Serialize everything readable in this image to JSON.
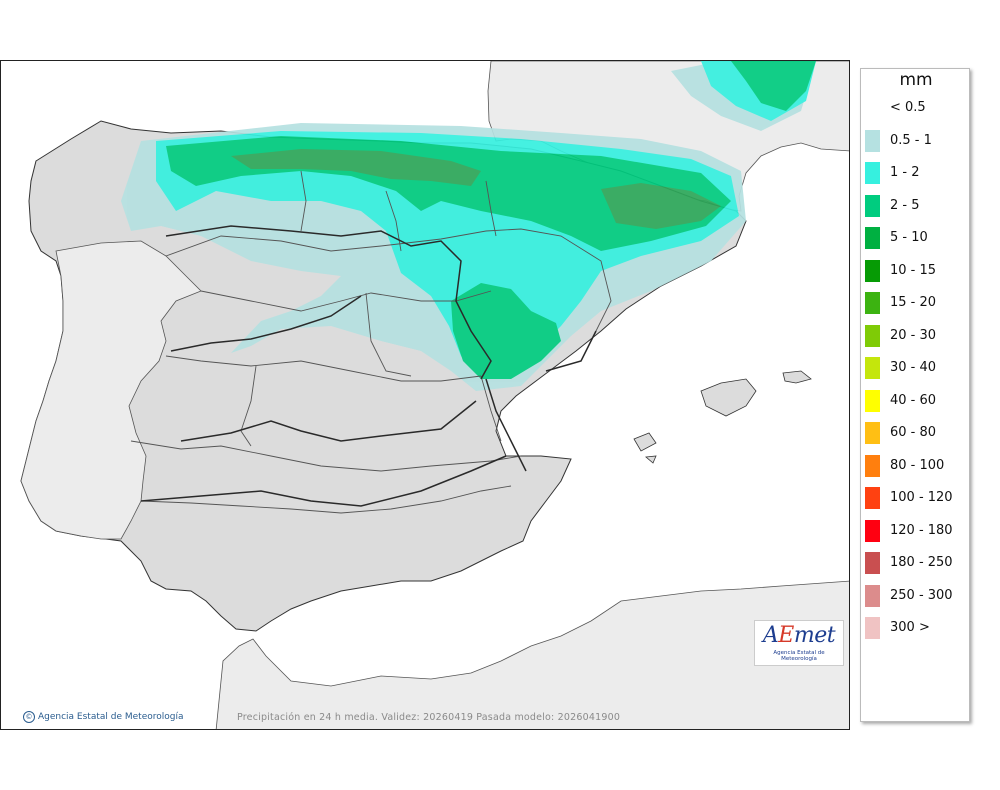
{
  "map": {
    "credit": "Agencia Estatal de Meteorología",
    "validity": "Precipitación en 24 h media. Validez: 20260419 Pasada modelo: 2026041900",
    "logo": {
      "brand_a": "A",
      "brand_e": "E",
      "brand_rest": "met",
      "subtitle": "Agencia Estatal de Meteorología"
    },
    "colors": {
      "sea": "#ffffff",
      "land": "#dcdcdc",
      "foreign_land": "#ececec",
      "border": "#333333"
    }
  },
  "legend": {
    "unit": "mm",
    "items": [
      {
        "label": "< 0.5",
        "color": "#ffffff"
      },
      {
        "label": "0.5 - 1",
        "color": "#b5e1e1"
      },
      {
        "label": "1 - 2",
        "color": "#36f0df"
      },
      {
        "label": "2 - 5",
        "color": "#00cc7f"
      },
      {
        "label": "5 - 10",
        "color": "#00b041"
      },
      {
        "label": "10 - 15",
        "color": "#069b05"
      },
      {
        "label": "15 - 20",
        "color": "#3cb311"
      },
      {
        "label": "20 - 30",
        "color": "#7fcb06"
      },
      {
        "label": "30 - 40",
        "color": "#c4e60c"
      },
      {
        "label": "40 - 60",
        "color": "#ffff00"
      },
      {
        "label": "60 - 80",
        "color": "#ffbf14"
      },
      {
        "label": "80 - 100",
        "color": "#ff7f0e"
      },
      {
        "label": "100 - 120",
        "color": "#ff4111"
      },
      {
        "label": "120 - 180",
        "color": "#ff0011"
      },
      {
        "label": "180 - 250",
        "color": "#c94f50"
      },
      {
        "label": "250 - 300",
        "color": "#dc8c8c"
      },
      {
        "label": "300 >",
        "color": "#f0c3c3"
      }
    ]
  }
}
